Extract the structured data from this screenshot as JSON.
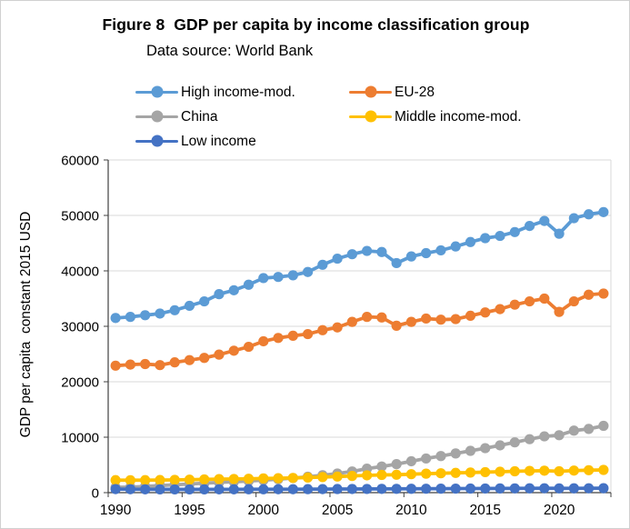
{
  "title": "Figure 8  GDP per capita by income classification group",
  "subtitle": "Data source: World Bank",
  "y_axis_title": "GDP per capita  constant 2015 USD",
  "colors": {
    "high_income": "#5B9BD5",
    "eu28": "#ED7D31",
    "china": "#A5A5A5",
    "middle_income": "#FFC000",
    "low_income": "#4472C4",
    "gridline": "#D9D9D9",
    "axis": "#404040",
    "text": "#000000"
  },
  "chart_data": {
    "type": "line",
    "title": "Figure 8  GDP per capita by income classification group",
    "subtitle": "Data source: World Bank",
    "xlabel": "",
    "ylabel": "GDP per capita  constant 2015 USD",
    "ylim": [
      0,
      60000
    ],
    "y_ticks": [
      0,
      10000,
      20000,
      30000,
      40000,
      50000,
      60000
    ],
    "x_ticks": [
      1990,
      1995,
      2000,
      2005,
      2010,
      2015,
      2020
    ],
    "grid": true,
    "legend_position": "top",
    "marker": "circle",
    "x": [
      1990,
      1991,
      1992,
      1993,
      1994,
      1995,
      1996,
      1997,
      1998,
      1999,
      2000,
      2001,
      2002,
      2003,
      2004,
      2005,
      2006,
      2007,
      2008,
      2009,
      2010,
      2011,
      2012,
      2013,
      2014,
      2015,
      2016,
      2017,
      2018,
      2019,
      2020,
      2021,
      2022,
      2023
    ],
    "series": [
      {
        "name": "High income-mod.",
        "color": "#5B9BD5",
        "values": [
          31500,
          31700,
          32000,
          32300,
          32900,
          33700,
          34500,
          35800,
          36500,
          37500,
          38700,
          38900,
          39200,
          39800,
          41100,
          42200,
          43000,
          43600,
          43400,
          41400,
          42600,
          43200,
          43700,
          44400,
          45200,
          45900,
          46300,
          47000,
          48100,
          49000,
          46700,
          49500,
          50200,
          50600
        ]
      },
      {
        "name": "EU-28",
        "color": "#ED7D31",
        "values": [
          22900,
          23100,
          23200,
          23000,
          23500,
          23900,
          24300,
          24900,
          25600,
          26300,
          27300,
          27900,
          28300,
          28600,
          29300,
          29800,
          30800,
          31700,
          31600,
          30100,
          30800,
          31400,
          31200,
          31300,
          31900,
          32500,
          33100,
          33900,
          34500,
          35000,
          32600,
          34500,
          35700,
          35900
        ]
      },
      {
        "name": "China",
        "color": "#A5A5A5",
        "values": [
          950,
          990,
          1120,
          1270,
          1420,
          1560,
          1700,
          1840,
          1960,
          2090,
          2250,
          2420,
          2630,
          2870,
          3140,
          3440,
          3820,
          4330,
          4720,
          5140,
          5660,
          6160,
          6600,
          7070,
          7540,
          8020,
          8530,
          9070,
          9640,
          10150,
          10360,
          11190,
          11490,
          12050
        ]
      },
      {
        "name": "Middle income-mod.",
        "color": "#FFC000",
        "values": [
          2250,
          2240,
          2250,
          2270,
          2300,
          2340,
          2390,
          2440,
          2460,
          2500,
          2560,
          2600,
          2650,
          2720,
          2810,
          2900,
          3010,
          3120,
          3200,
          3230,
          3330,
          3420,
          3490,
          3560,
          3630,
          3700,
          3770,
          3850,
          3920,
          3960,
          3850,
          3980,
          4050,
          4100
        ]
      },
      {
        "name": "Low income",
        "color": "#4472C4",
        "values": [
          640,
          620,
          600,
          590,
          580,
          580,
          590,
          600,
          600,
          610,
          610,
          620,
          620,
          630,
          640,
          650,
          660,
          670,
          680,
          690,
          700,
          710,
          720,
          730,
          740,
          750,
          760,
          770,
          780,
          790,
          770,
          780,
          790,
          800
        ]
      }
    ]
  }
}
